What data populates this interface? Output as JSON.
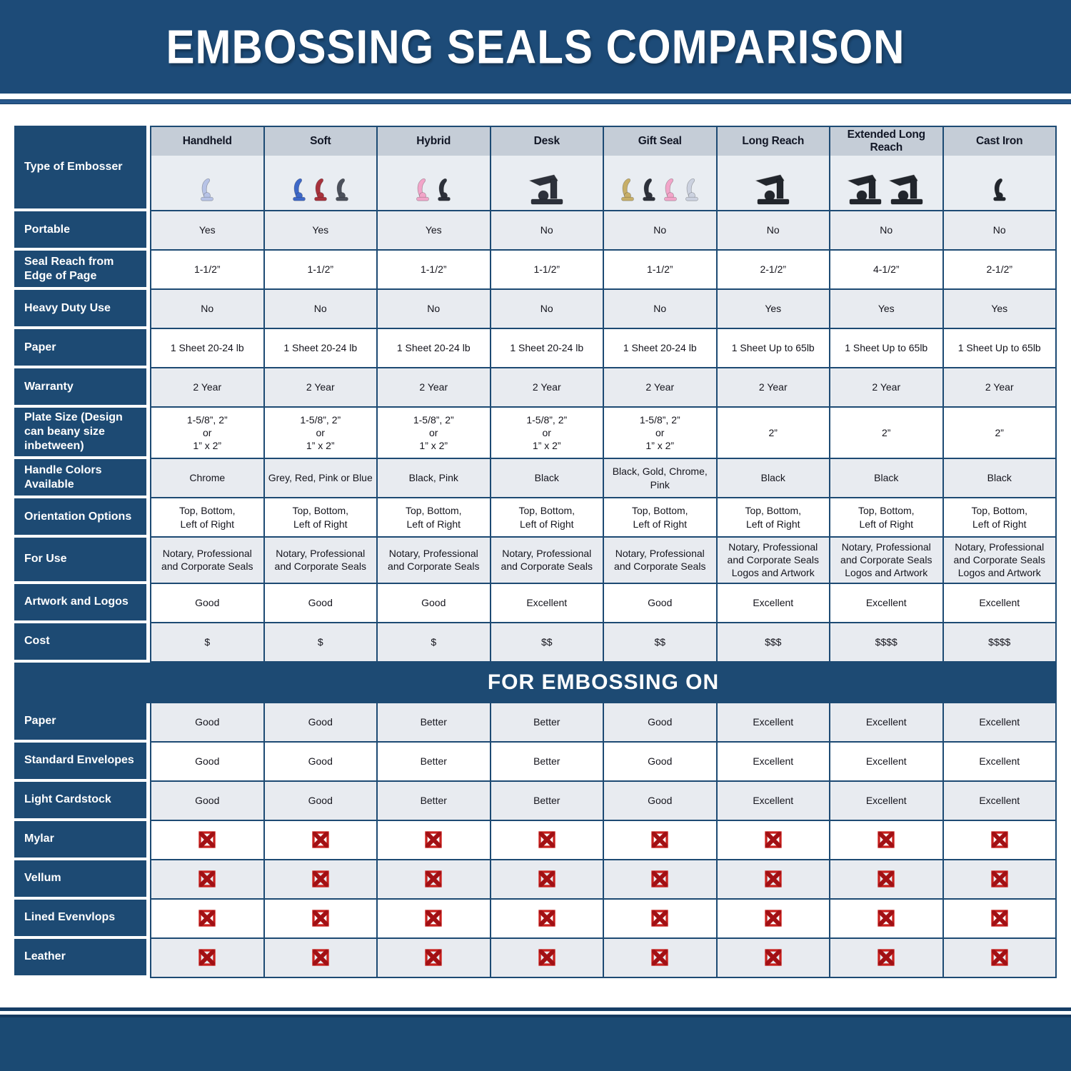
{
  "page_title": "EMBOSSING SEALS COMPARISON",
  "colors": {
    "navy": "#1d4a73",
    "header_navy": "#1d4b78",
    "column_header_bg": "#c5cdd7",
    "light_row_bg": "#e8ebf0",
    "white_row_bg": "#ffffff",
    "red_x_box": "#c8201d",
    "red_x_cross": "#a21014"
  },
  "comparison_table": {
    "corner_label": "Type of Embosser",
    "columns": [
      {
        "label": "Handheld",
        "image": {
          "icon": "handheld-embosser-image",
          "style": "hand",
          "colors": [
            "#b7c3e6"
          ]
        }
      },
      {
        "label": "Soft",
        "image": {
          "icon": "soft-embosser-image",
          "style": "hand",
          "colors": [
            "#3e68c8",
            "#a8323c",
            "#4c515c"
          ]
        }
      },
      {
        "label": "Hybrid",
        "image": {
          "icon": "hybrid-embosser-image",
          "style": "hand",
          "colors": [
            "#f2a5c9",
            "#2d313b"
          ]
        }
      },
      {
        "label": "Desk",
        "image": {
          "icon": "desk-embosser-image",
          "style": "desk",
          "colors": [
            "#2d313b"
          ]
        }
      },
      {
        "label": "Gift Seal",
        "image": {
          "icon": "gift-seal-embosser-image",
          "style": "hand",
          "colors": [
            "#c7af69",
            "#2d313b",
            "#f2a5c9",
            "#ccd2e0"
          ]
        }
      },
      {
        "label": "Long Reach",
        "image": {
          "icon": "long-reach-embosser-image",
          "style": "desk",
          "colors": [
            "#22262d"
          ]
        }
      },
      {
        "label": "Extended Long Reach",
        "image": {
          "icon": "extended-long-reach-embosser-image",
          "style": "desk",
          "colors": [
            "#22262d",
            "#22262d"
          ]
        }
      },
      {
        "label": "Cast Iron",
        "image": {
          "icon": "cast-iron-embosser-image",
          "style": "hand",
          "colors": [
            "#22262d"
          ]
        }
      }
    ],
    "rows": [
      {
        "label": "Portable",
        "values": [
          "Yes",
          "Yes",
          "Yes",
          "No",
          "No",
          "No",
          "No",
          "No"
        ]
      },
      {
        "label": "Seal Reach from Edge of Page",
        "values": [
          "1-1/2”",
          "1-1/2”",
          "1-1/2”",
          "1-1/2”",
          "1-1/2”",
          "2-1/2”",
          "4-1/2”",
          "2-1/2”"
        ]
      },
      {
        "label": "Heavy Duty Use",
        "values": [
          "No",
          "No",
          "No",
          "No",
          "No",
          "Yes",
          "Yes",
          "Yes"
        ]
      },
      {
        "label": "Paper",
        "values": [
          "1 Sheet 20-24 lb",
          "1 Sheet 20-24 lb",
          "1 Sheet 20-24 lb",
          "1 Sheet 20-24 lb",
          "1 Sheet 20-24 lb",
          "1 Sheet Up to 65lb",
          "1 Sheet Up to 65lb",
          "1 Sheet Up to 65lb"
        ]
      },
      {
        "label": "Warranty",
        "values": [
          "2 Year",
          "2 Year",
          "2 Year",
          "2 Year",
          "2 Year",
          "2 Year",
          "2 Year",
          "2 Year"
        ]
      },
      {
        "label": "Plate Size (Design can beany size inbetween)",
        "values": [
          "1-5/8”, 2”\nor\n1” x 2”",
          "1-5/8”, 2”\nor\n1” x 2”",
          "1-5/8”, 2”\nor\n1” x 2”",
          "1-5/8”, 2”\nor\n1” x 2”",
          "1-5/8”, 2”\nor\n1” x 2”",
          "2”",
          "2”",
          "2”"
        ]
      },
      {
        "label": "Handle Colors Available",
        "values": [
          "Chrome",
          "Grey, Red, Pink or Blue",
          "Black, Pink",
          "Black",
          "Black, Gold, Chrome, Pink",
          "Black",
          "Black",
          "Black"
        ]
      },
      {
        "label": "Orientation Options",
        "values": [
          "Top, Bottom,\nLeft of Right",
          "Top, Bottom,\nLeft of Right",
          "Top, Bottom,\nLeft of Right",
          "Top, Bottom,\nLeft of Right",
          "Top, Bottom,\nLeft of Right",
          "Top, Bottom,\nLeft of Right",
          "Top, Bottom,\nLeft of Right",
          "Top, Bottom,\nLeft of Right"
        ]
      },
      {
        "label": "For Use",
        "values": [
          "Notary, Professional\nand Corporate Seals",
          "Notary, Professional\nand Corporate Seals",
          "Notary, Professional\nand Corporate Seals",
          "Notary, Professional\nand Corporate Seals",
          "Notary, Professional\nand Corporate Seals",
          "Notary, Professional\nand Corporate Seals\nLogos and Artwork",
          "Notary, Professional\nand Corporate Seals\nLogos and Artwork",
          "Notary, Professional\nand Corporate Seals\nLogos and Artwork"
        ]
      },
      {
        "label": "Artwork and Logos",
        "values": [
          "Good",
          "Good",
          "Good",
          "Excellent",
          "Good",
          "Excellent",
          "Excellent",
          "Excellent"
        ]
      },
      {
        "label": "Cost",
        "values": [
          "$",
          "$",
          "$",
          "$$",
          "$$",
          "$$$",
          "$$$$",
          "$$$$"
        ]
      }
    ]
  },
  "embossing_section": {
    "title": "FOR EMBOSSING ON",
    "not_suitable_icon": "red-x-icon",
    "rows": [
      {
        "label": "Paper",
        "values": [
          "Good",
          "Good",
          "Better",
          "Better",
          "Good",
          "Excellent",
          "Excellent",
          "Excellent"
        ]
      },
      {
        "label": "Standard Envelopes",
        "values": [
          "Good",
          "Good",
          "Better",
          "Better",
          "Good",
          "Excellent",
          "Excellent",
          "Excellent"
        ]
      },
      {
        "label": "Light Cardstock",
        "values": [
          "Good",
          "Good",
          "Better",
          "Better",
          "Good",
          "Excellent",
          "Excellent",
          "Excellent"
        ]
      },
      {
        "label": "Mylar",
        "icon": "red-x-icon"
      },
      {
        "label": "Vellum",
        "icon": "red-x-icon"
      },
      {
        "label": "Lined Evenvlops",
        "icon": "red-x-icon"
      },
      {
        "label": "Leather",
        "icon": "red-x-icon"
      }
    ]
  }
}
